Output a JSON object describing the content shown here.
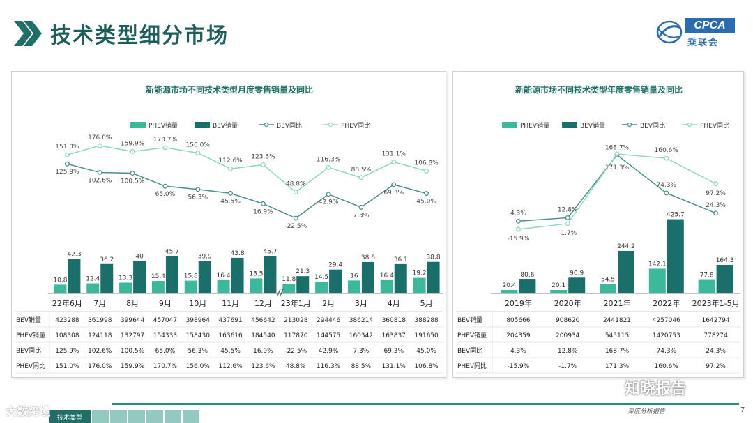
{
  "page": {
    "title": "技术类型细分市场",
    "logo_text": "CPCA",
    "logo_sub": "乘联会",
    "page_number": "7",
    "footer_note": "深度分析报告",
    "footer_tabs": [
      "技术类型",
      "",
      "",
      "",
      "",
      "",
      ""
    ],
    "watermark_left": "大数跨境",
    "watermark_right": "知晓报告"
  },
  "chart_data": [
    {
      "type": "bar",
      "title": "新能源市场不同技术类型月度零售销量及同比",
      "categories": [
        "22年6月",
        "7月",
        "8月",
        "9月",
        "10月",
        "11月",
        "12月",
        "23年1月",
        "2月",
        "3月",
        "4月",
        "5月"
      ],
      "series": [
        {
          "name": "PHEV销量",
          "values": [
            10.8,
            12.4,
            13.3,
            15.4,
            15.8,
            16.4,
            18.5,
            11.8,
            14.5,
            16.0,
            16.4,
            19.2
          ],
          "color": "#3cb89a"
        },
        {
          "name": "BEV销量",
          "values": [
            42.3,
            36.2,
            40.0,
            45.7,
            39.9,
            43.8,
            45.7,
            21.3,
            29.4,
            38.6,
            36.1,
            38.8
          ],
          "color": "#1b6f6a"
        }
      ],
      "lines": [
        {
          "name": "BEV同比",
          "values": [
            125.9,
            102.6,
            100.5,
            65.0,
            56.3,
            45.5,
            16.9,
            -22.5,
            42.9,
            7.3,
            69.3,
            45.0
          ],
          "labels": [
            "125.9%",
            "102.6%",
            "100.5%",
            "65.0%",
            "56.3%",
            "45.5%",
            "16.9%",
            "-22.5%",
            "42.9%",
            "7.3%",
            "69.3%",
            "45.0%"
          ],
          "color": "#4a8f8c"
        },
        {
          "name": "PHEV同比",
          "values": [
            151.0,
            176.0,
            159.9,
            170.7,
            156.0,
            112.6,
            123.6,
            48.8,
            116.3,
            88.5,
            131.1,
            106.8
          ],
          "labels": [
            "151.0%",
            "176.0%",
            "159.9%",
            "170.7%",
            "156.0%",
            "112.6%",
            "123.6%",
            "48.8%",
            "116.3%",
            "88.5%",
            "131.1%",
            "106.8%"
          ],
          "color": "#8fd6c4"
        }
      ],
      "table": {
        "rows": [
          {
            "label": "BEV销量",
            "values": [
              "423288",
              "361998",
              "399644",
              "457047",
              "398964",
              "437691",
              "456642",
              "213028",
              "294446",
              "386214",
              "360818",
              "388288"
            ]
          },
          {
            "label": "PHEV销量",
            "values": [
              "108308",
              "124118",
              "132797",
              "154333",
              "158430",
              "163616",
              "184540",
              "117870",
              "144575",
              "160342",
              "163837",
              "191650"
            ]
          },
          {
            "label": "BEV同比",
            "values": [
              "125.9%",
              "102.6%",
              "100.5%",
              "65.0%",
              "56.3%",
              "45.5%",
              "16.9%",
              "-22.5%",
              "42.9%",
              "7.3%",
              "69.3%",
              "45.0%"
            ]
          },
          {
            "label": "PHEV同比",
            "values": [
              "151.0%",
              "176.0%",
              "159.9%",
              "170.7%",
              "156.0%",
              "112.6%",
              "123.6%",
              "48.8%",
              "116.3%",
              "88.5%",
              "131.1%",
              "106.8%"
            ]
          }
        ]
      },
      "legend_position": "top",
      "grid": false,
      "axis_break_after": "12月"
    },
    {
      "type": "bar",
      "title": "新能源市场不同技术类型年度零售销量及同比",
      "categories": [
        "2019年",
        "2020年",
        "2021年",
        "2022年",
        "2023年1-5月"
      ],
      "series": [
        {
          "name": "PHEV销量",
          "values": [
            20.4,
            20.1,
            54.5,
            142.1,
            77.8
          ],
          "color": "#3cb89a"
        },
        {
          "name": "BEV销量",
          "values": [
            80.6,
            90.9,
            244.2,
            425.7,
            164.3
          ],
          "color": "#1b6f6a"
        }
      ],
      "lines": [
        {
          "name": "BEV同比",
          "values": [
            4.3,
            12.8,
            168.7,
            74.3,
            24.3
          ],
          "labels": [
            "4.3%",
            "12.8%",
            "168.7%",
            "74.3%",
            "24.3%"
          ],
          "color": "#4a8f8c"
        },
        {
          "name": "PHEV同比",
          "values": [
            -15.9,
            -1.7,
            171.3,
            160.6,
            97.2
          ],
          "labels": [
            "-15.9%",
            "-1.7%",
            "171.3%",
            "160.6%",
            "97.2%"
          ],
          "color": "#8fd6c4"
        }
      ],
      "table": {
        "rows": [
          {
            "label": "BEV销量",
            "values": [
              "805666",
              "908620",
              "2441821",
              "4257046",
              "1642794"
            ]
          },
          {
            "label": "PHEV销量",
            "values": [
              "204359",
              "200934",
              "545115",
              "1420753",
              "778274"
            ]
          },
          {
            "label": "BEV同比",
            "values": [
              "4.3%",
              "12.8%",
              "168.7%",
              "74.3%",
              "24.3%"
            ]
          },
          {
            "label": "PHEV同比",
            "values": [
              "-15.9%",
              "-1.7%",
              "171.3%",
              "160.6%",
              "97.2%"
            ]
          }
        ]
      },
      "legend_position": "top",
      "grid": false
    }
  ]
}
